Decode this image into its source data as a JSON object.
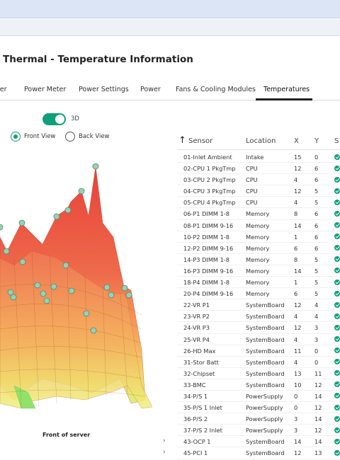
{
  "page": {
    "title": "Thermal - Temperature Information"
  },
  "tabs": [
    {
      "label": "wer"
    },
    {
      "label": "Power Meter"
    },
    {
      "label": "Power Settings"
    },
    {
      "label": "Power"
    },
    {
      "label": "Fans & Cooling Modules"
    },
    {
      "label": "Temperatures",
      "active": true
    }
  ],
  "view_controls": {
    "toggle_3d": {
      "label": "3D",
      "on": true
    },
    "front_view": {
      "label": "Front View",
      "selected": true
    },
    "back_view": {
      "label": "Back View",
      "selected": false
    }
  },
  "chart": {
    "caption": "Front of server"
  },
  "table": {
    "columns": {
      "sensor": "Sensor",
      "location": "Location",
      "x": "X",
      "y": "Y",
      "status": "S"
    },
    "rows": [
      {
        "sensor": "01-Inlet Ambient",
        "location": "Intake",
        "x": "15",
        "y": "0",
        "status": "ok"
      },
      {
        "sensor": "02-CPU 1 PkgTmp",
        "location": "CPU",
        "x": "12",
        "y": "6",
        "status": "ok"
      },
      {
        "sensor": "03-CPU 2 PkgTmp",
        "location": "CPU",
        "x": "4",
        "y": "6",
        "status": "ok"
      },
      {
        "sensor": "04-CPU 3 PkgTmp",
        "location": "CPU",
        "x": "12",
        "y": "5",
        "status": "ok"
      },
      {
        "sensor": "05-CPU 4 PkgTmp",
        "location": "CPU",
        "x": "4",
        "y": "5",
        "status": "ok"
      },
      {
        "sensor": "06-P1 DIMM 1-8",
        "location": "Memory",
        "x": "8",
        "y": "6",
        "status": "ok"
      },
      {
        "sensor": "08-P1 DIMM 9-16",
        "location": "Memory",
        "x": "14",
        "y": "6",
        "status": "ok"
      },
      {
        "sensor": "10-P2 DIMM 1-8",
        "location": "Memory",
        "x": "1",
        "y": "6",
        "status": "ok"
      },
      {
        "sensor": "12-P2 DIMM 9-16",
        "location": "Memory",
        "x": "6",
        "y": "6",
        "status": "ok"
      },
      {
        "sensor": "14-P3 DIMM 1-8",
        "location": "Memory",
        "x": "8",
        "y": "5",
        "status": "ok"
      },
      {
        "sensor": "16-P3 DIMM 9-16",
        "location": "Memory",
        "x": "14",
        "y": "5",
        "status": "ok"
      },
      {
        "sensor": "18-P4 DIMM 1-8",
        "location": "Memory",
        "x": "1",
        "y": "5",
        "status": "ok"
      },
      {
        "sensor": "20-P4 DIMM 9-16",
        "location": "Memory",
        "x": "6",
        "y": "5",
        "status": "ok"
      },
      {
        "sensor": "22-VR P1",
        "location": "SystemBoard",
        "x": "12",
        "y": "4",
        "status": "ok"
      },
      {
        "sensor": "23-VR P2",
        "location": "SystemBoard",
        "x": "4",
        "y": "4",
        "status": "ok"
      },
      {
        "sensor": "24-VR P3",
        "location": "SystemBoard",
        "x": "12",
        "y": "3",
        "status": "ok"
      },
      {
        "sensor": "25-VR P4",
        "location": "SystemBoard",
        "x": "4",
        "y": "3",
        "status": "ok"
      },
      {
        "sensor": "26-HD Max",
        "location": "SystemBoard",
        "x": "11",
        "y": "0",
        "status": "ok"
      },
      {
        "sensor": "31-Stor Batt",
        "location": "SystemBoard",
        "x": "4",
        "y": "0",
        "status": "ok"
      },
      {
        "sensor": "32-Chipset",
        "location": "SystemBoard",
        "x": "13",
        "y": "11",
        "status": "ok"
      },
      {
        "sensor": "33-BMC",
        "location": "SystemBoard",
        "x": "10",
        "y": "12",
        "status": "ok"
      },
      {
        "sensor": "34-P/S 1",
        "location": "PowerSupply",
        "x": "0",
        "y": "14",
        "status": "ok"
      },
      {
        "sensor": "35-P/S 1 Inlet",
        "location": "PowerSupply",
        "x": "0",
        "y": "12",
        "status": "ok"
      },
      {
        "sensor": "36-P/S 2",
        "location": "PowerSupply",
        "x": "3",
        "y": "14",
        "status": "ok"
      },
      {
        "sensor": "37-P/S 2 Inlet",
        "location": "PowerSupply",
        "x": "3",
        "y": "12",
        "status": "ok"
      },
      {
        "sensor": "43-OCP 1",
        "location": "SystemBoard",
        "x": "14",
        "y": "14",
        "status": "ok"
      },
      {
        "sensor": "45-PCI 1",
        "location": "SystemBoard",
        "x": "12",
        "y": "13",
        "status": "ok"
      }
    ]
  },
  "colors": {
    "accent": "#0fa07a",
    "surface_hot": "#e8413a",
    "surface_cool": "#f2ee6a"
  }
}
